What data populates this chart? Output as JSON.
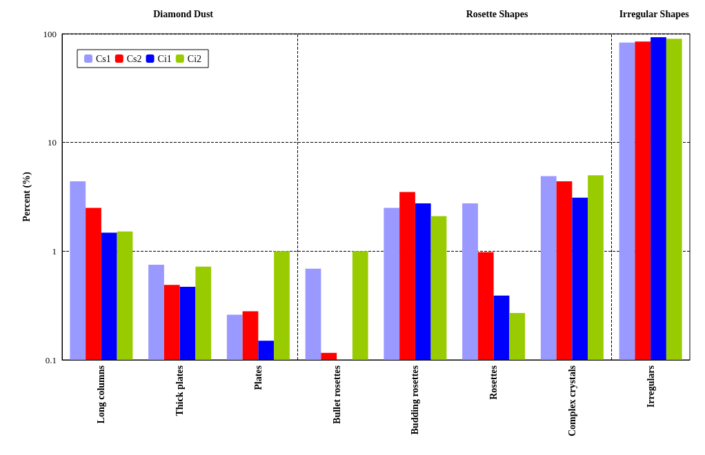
{
  "chart_data": {
    "type": "bar",
    "ylabel": "Percent (%)",
    "categories": [
      "Long columns",
      "Thick plates",
      "Plates",
      "Bullet rosettes",
      "Budding rosettes",
      "Rosettes",
      "Complex crystals",
      "Irregulars"
    ],
    "series": [
      {
        "name": "Cs1",
        "color": "#9999ff",
        "values": [
          4.4,
          0.75,
          0.26,
          0.69,
          2.5,
          2.75,
          4.9,
          83
        ]
      },
      {
        "name": "Cs2",
        "color": "#ff0000",
        "values": [
          2.5,
          0.49,
          0.28,
          0.116,
          3.5,
          0.98,
          4.4,
          85
        ]
      },
      {
        "name": "Ci1",
        "color": "#0000ff",
        "values": [
          1.48,
          0.47,
          0.15,
          null,
          2.75,
          0.39,
          3.1,
          93
        ]
      },
      {
        "name": "Ci2",
        "color": "#99cc00",
        "values": [
          1.52,
          0.72,
          1.0,
          1.0,
          2.1,
          0.27,
          5.0,
          90
        ]
      }
    ],
    "annotations": [
      "Diamond Dust",
      "Rosette Shapes",
      "Irregular Shapes"
    ],
    "log": "y",
    "ylim": [
      0.1,
      100
    ],
    "yticks": [
      0.1,
      1,
      10,
      100
    ],
    "grid": "y",
    "legend": "top left"
  }
}
